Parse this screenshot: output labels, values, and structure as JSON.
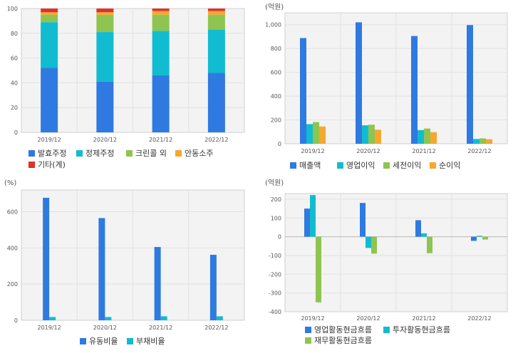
{
  "chart_data": [
    {
      "type": "bar",
      "stacked": true,
      "categories": [
        "2019/12",
        "2020/12",
        "2021/12",
        "2022/12"
      ],
      "unit": "",
      "ylim": [
        0,
        100
      ],
      "yticks": [
        0,
        20,
        40,
        60,
        80,
        100
      ],
      "grid": true,
      "legend_position": "bottom",
      "series": [
        {
          "name": "발효주정",
          "color": "#2f7ae0",
          "values": [
            52,
            41,
            46,
            48
          ]
        },
        {
          "name": "정제주정",
          "color": "#11bcd0",
          "values": [
            37,
            40,
            36,
            35
          ]
        },
        {
          "name": "크린콜 외",
          "color": "#8fc450",
          "values": [
            6,
            14,
            13,
            12
          ]
        },
        {
          "name": "안동소주",
          "color": "#f5a830",
          "values": [
            2,
            2,
            3,
            3
          ]
        },
        {
          "name": "기타(계)",
          "color": "#e03228",
          "values": [
            3,
            3,
            2,
            2
          ]
        }
      ]
    },
    {
      "type": "bar",
      "categories": [
        "2019/12",
        "2020/12",
        "2021/12",
        "2022/12"
      ],
      "unit": "(억원)",
      "ylim": [
        0,
        1100
      ],
      "yticks": [
        0,
        200,
        400,
        600,
        800,
        1000
      ],
      "ytick_labels": [
        "0",
        "200",
        "400",
        "600",
        "800",
        "1,000"
      ],
      "grid": true,
      "legend_position": "bottom",
      "series": [
        {
          "name": "매출액",
          "color": "#2f7ae0",
          "values": [
            888,
            1020,
            905,
            997
          ]
        },
        {
          "name": "영업이익",
          "color": "#11bcd0",
          "values": [
            165,
            155,
            115,
            40
          ]
        },
        {
          "name": "세전이익",
          "color": "#8fc450",
          "values": [
            182,
            160,
            128,
            45
          ]
        },
        {
          "name": "순이익",
          "color": "#f5a830",
          "values": [
            145,
            118,
            98,
            38
          ]
        }
      ]
    },
    {
      "type": "bar",
      "categories": [
        "2019/12",
        "2020/12",
        "2021/12",
        "2022/12"
      ],
      "unit": "(%)",
      "ylim": [
        0,
        720
      ],
      "yticks": [
        0,
        200,
        400,
        600
      ],
      "grid": true,
      "legend_position": "bottom",
      "series": [
        {
          "name": "유동비율",
          "color": "#2f7ae0",
          "values": [
            677,
            565,
            405,
            362
          ]
        },
        {
          "name": "부채비율",
          "color": "#11bcd0",
          "values": [
            18,
            18,
            22,
            22
          ]
        }
      ]
    },
    {
      "type": "bar",
      "categories": [
        "2019/12",
        "2020/12",
        "2021/12",
        "2022/12"
      ],
      "unit": "(억원)",
      "ylim": [
        -400,
        230
      ],
      "yticks": [
        -400,
        -300,
        -200,
        -100,
        0,
        100,
        200
      ],
      "grid": true,
      "legend_position": "bottom",
      "series": [
        {
          "name": "영업활동현금흐름",
          "color": "#2f7ae0",
          "values": [
            150,
            180,
            88,
            -22
          ]
        },
        {
          "name": "투자활동현금흐름",
          "color": "#11bcd0",
          "values": [
            222,
            -60,
            18,
            5
          ]
        },
        {
          "name": "재무활동현금흐름",
          "color": "#8fc450",
          "values": [
            -350,
            -90,
            -88,
            -15
          ]
        }
      ]
    }
  ]
}
